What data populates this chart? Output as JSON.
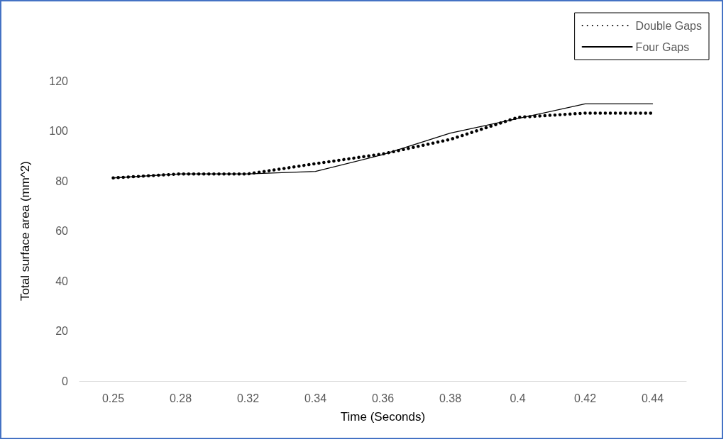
{
  "chart_data": {
    "type": "line",
    "xlabel": "Time (Seconds)",
    "ylabel": "Total surface area (mm^2)",
    "categories": [
      "0.25",
      "0.28",
      "0.32",
      "0.34",
      "0.36",
      "0.38",
      "0.4",
      "0.42",
      "0.44"
    ],
    "series": [
      {
        "name": "Double Gaps",
        "color": "#000000",
        "line_style": "dotted",
        "values": [
          81.2,
          82.8,
          82.8,
          86.9,
          90.8,
          96.6,
          105.4,
          107.1,
          107.1
        ]
      },
      {
        "name": "Four Gaps",
        "color": "#000000",
        "line_style": "solid",
        "values": [
          81.2,
          82.8,
          82.8,
          83.8,
          90.5,
          99.1,
          104.9,
          110.8,
          110.8
        ]
      }
    ],
    "ylim": [
      0,
      120
    ],
    "yticks": [
      0,
      20,
      40,
      60,
      80,
      100,
      120
    ],
    "grid": false,
    "legend": "top right",
    "marker": "none"
  }
}
